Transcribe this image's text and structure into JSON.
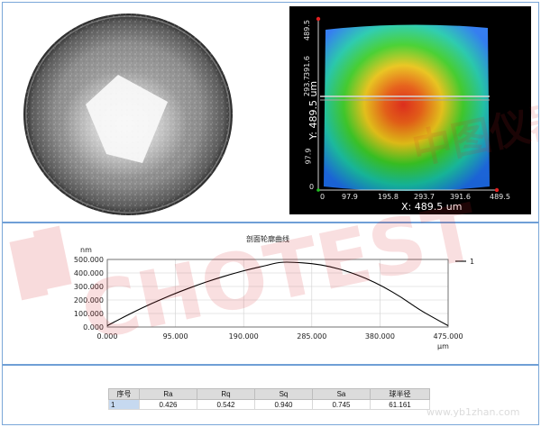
{
  "watermark": {
    "brand": "CHOTEST",
    "brand_cn": "中图仪器",
    "site": "www.yb1zhan.com"
  },
  "map3d": {
    "x_axis_title": "X: 489.5 um",
    "y_axis_title": "Y: 489.5 um",
    "x_ticks": [
      "0",
      "97.9",
      "195.8",
      "293.7",
      "391.6",
      "489.5"
    ],
    "y_ticks": [
      "0",
      "97.9",
      "195.8",
      "293.7",
      "391.6",
      "489.5"
    ]
  },
  "profile": {
    "title": "剖面轮廓曲线",
    "legend_label": "1",
    "colors": {
      "line": "#000000",
      "grid": "#d0d0d0"
    }
  },
  "chart_data": {
    "type": "line",
    "title": "剖面轮廓曲线",
    "xlabel": "μm",
    "ylabel": "nm",
    "xlim": [
      0,
      475
    ],
    "ylim": [
      0,
      500
    ],
    "x_ticks": [
      "0.000",
      "95.000",
      "190.000",
      "285.000",
      "380.000",
      "475.000"
    ],
    "y_ticks": [
      "0.000",
      "100.000",
      "200.000",
      "300.000",
      "400.000",
      "500.000"
    ],
    "series": [
      {
        "name": "1",
        "x": [
          0,
          25,
          50,
          75,
          100,
          125,
          150,
          175,
          200,
          225,
          240,
          260,
          285,
          310,
          335,
          360,
          385,
          410,
          435,
          455,
          475
        ],
        "y": [
          10,
          80,
          145,
          205,
          260,
          310,
          355,
          395,
          430,
          460,
          480,
          480,
          470,
          448,
          412,
          362,
          298,
          220,
          128,
          68,
          10
        ]
      }
    ],
    "grid": true,
    "legend": "top-right"
  },
  "table": {
    "headers": [
      "序号",
      "Ra",
      "Rq",
      "Sq",
      "Sa",
      "球半径"
    ],
    "rows": [
      [
        "1",
        "0.426",
        "0.542",
        "0.940",
        "0.745",
        "61.161"
      ]
    ]
  }
}
